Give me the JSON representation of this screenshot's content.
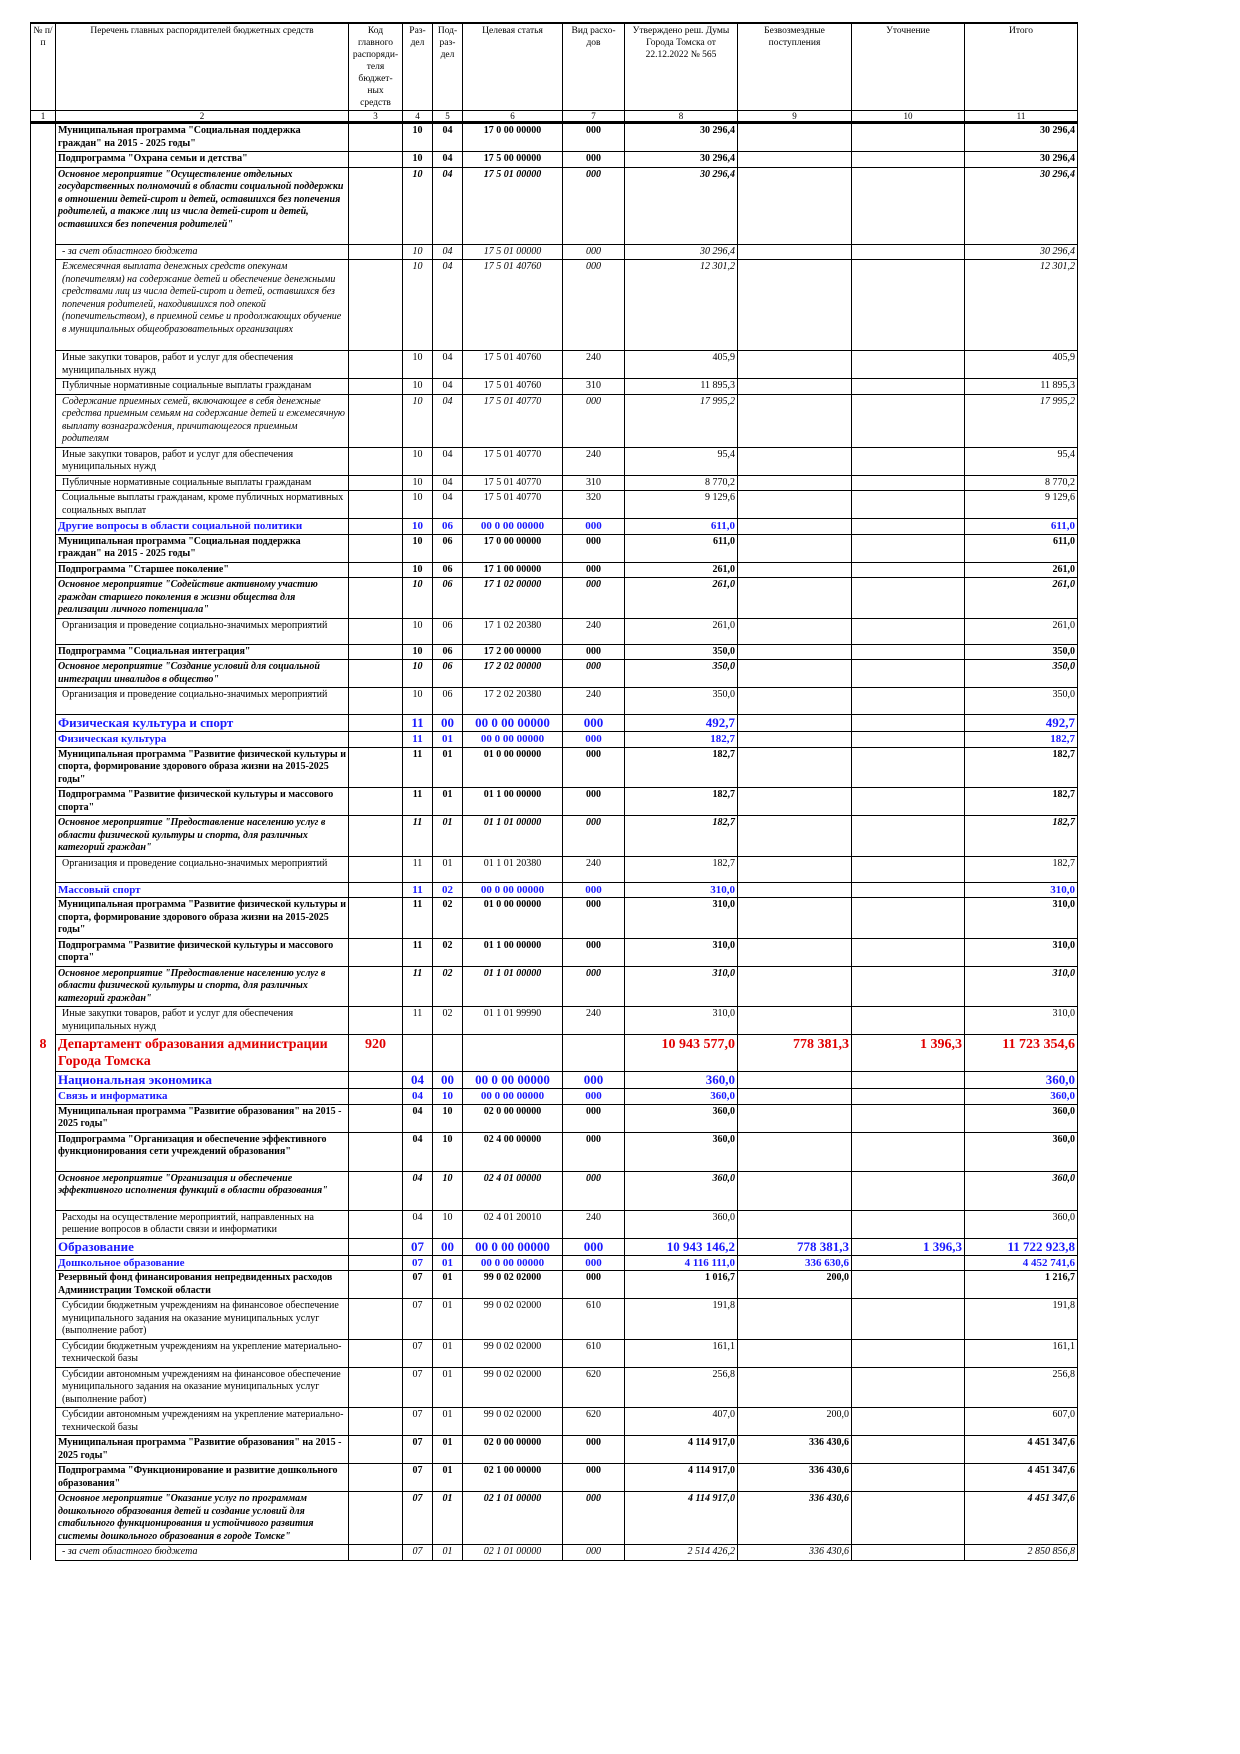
{
  "table": {
    "header": [
      "№ п/п",
      "Перечень главных распорядителей бюджетных средств",
      "Код главного распоряди-теля бюджет-ных средств",
      "Раз-дел",
      "Под-раз-дел",
      "Целевая статья",
      "Вид расхо-дов",
      "Утверждено реш. Думы Города Томска от 22.12.2022 № 565",
      "Безвозмездные поступления",
      "Уточнение",
      "Итого"
    ],
    "column_numbers": [
      1,
      2,
      3,
      4,
      5,
      6,
      7,
      8,
      9,
      10,
      11
    ],
    "rows": [
      [
        null,
        "Муниципальная программа \"Социальная поддержка граждан\" на 2015 - 2025 годы\"",
        null,
        "10",
        "04",
        "17 0 00 00000",
        "000",
        "30 296,4",
        null,
        null,
        "30 296,4"
      ],
      [
        null,
        "Подпрограмма \"Охрана семьи и детства\"",
        null,
        "10",
        "04",
        "17 5 00 00000",
        "000",
        "30 296,4",
        null,
        null,
        "30 296,4"
      ],
      [
        null,
        "Основное мероприятие \"Осуществление отдельных государственных полномочий в области социальной поддержки в отношении детей-сирот и детей, оставшихся без попечения родителей, а также лиц из числа детей-сирот и детей, оставшихся без попечения родителей\"",
        null,
        "10",
        "04",
        "17 5 01 00000",
        "000",
        "30 296,4",
        null,
        null,
        "30 296,4"
      ],
      [
        null,
        "- за счет областного бюджета",
        null,
        "10",
        "04",
        "17 5 01 00000",
        "000",
        "30 296,4",
        null,
        null,
        "30 296,4"
      ],
      [
        null,
        "Ежемесячная выплата денежных средств опекунам (попечителям) на содержание детей и обеспечение денежными средствами лиц из числа детей-сирот и детей, оставшихся без попечения родителей, находившихся под опекой (попечительством), в приемной семье и продолжающих обучение в муниципальных общеобразовательных организациях",
        null,
        "10",
        "04",
        "17 5 01 40760",
        "000",
        "12 301,2",
        null,
        null,
        "12 301,2"
      ],
      [
        null,
        "Иные закупки товаров, работ и услуг для обеспечения муниципальных нужд",
        null,
        "10",
        "04",
        "17 5 01 40760",
        "240",
        "405,9",
        null,
        null,
        "405,9"
      ],
      [
        null,
        "Публичные нормативные социальные выплаты гражданам",
        null,
        "10",
        "04",
        "17 5 01 40760",
        "310",
        "11 895,3",
        null,
        null,
        "11 895,3"
      ],
      [
        null,
        "Содержание приемных семей, включающее в себя денежные средства приемным семьям на содержание детей и ежемесячную выплату вознаграждения, причитающегося приемным родителям",
        null,
        "10",
        "04",
        "17 5 01 40770",
        "000",
        "17 995,2",
        null,
        null,
        "17 995,2"
      ],
      [
        null,
        "Иные закупки товаров, работ и услуг для обеспечения муниципальных нужд",
        null,
        "10",
        "04",
        "17 5 01 40770",
        "240",
        "95,4",
        null,
        null,
        "95,4"
      ],
      [
        null,
        "Публичные нормативные социальные выплаты гражданам",
        null,
        "10",
        "04",
        "17 5 01 40770",
        "310",
        "8 770,2",
        null,
        null,
        "8 770,2"
      ],
      [
        null,
        "Социальные выплаты гражданам, кроме публичных нормативных социальных выплат",
        null,
        "10",
        "04",
        "17 5 01 40770",
        "320",
        "9 129,6",
        null,
        null,
        "9 129,6"
      ],
      [
        null,
        "Другие вопросы в области социальной политики",
        null,
        "10",
        "06",
        "00 0 00 00000",
        "000",
        "611,0",
        null,
        null,
        "611,0"
      ],
      [
        null,
        "Муниципальная программа \"Социальная поддержка граждан\" на 2015 - 2025 годы\"",
        null,
        "10",
        "06",
        "17 0 00 00000",
        "000",
        "611,0",
        null,
        null,
        "611,0"
      ],
      [
        null,
        "Подпрограмма \"Старшее поколение\"",
        null,
        "10",
        "06",
        "17 1 00 00000",
        "000",
        "261,0",
        null,
        null,
        "261,0"
      ],
      [
        null,
        "Основное мероприятие \"Содействие активному участию граждан старшего поколения в жизни общества для реализации личного потенциала\"",
        null,
        "10",
        "06",
        "17 1 02 00000",
        "000",
        "261,0",
        null,
        null,
        "261,0"
      ],
      [
        null,
        "Организация и проведение социально-значимых мероприятий",
        null,
        "10",
        "06",
        "17 1 02 20380",
        "240",
        "261,0",
        null,
        null,
        "261,0"
      ],
      [
        null,
        "Подпрограмма \"Социальная интеграция\"",
        null,
        "10",
        "06",
        "17 2 00 00000",
        "000",
        "350,0",
        null,
        null,
        "350,0"
      ],
      [
        null,
        "Основное мероприятие \"Создание условий для социальной интеграции инвалидов в общество\"",
        null,
        "10",
        "06",
        "17 2 02 00000",
        "000",
        "350,0",
        null,
        null,
        "350,0"
      ],
      [
        null,
        "Организация и проведение социально-значимых мероприятий",
        null,
        "10",
        "06",
        "17 2 02 20380",
        "240",
        "350,0",
        null,
        null,
        "350,0"
      ],
      [
        null,
        "Физическая культура и спорт",
        null,
        "11",
        "00",
        "00 0 00 00000",
        "000",
        "492,7",
        null,
        null,
        "492,7"
      ],
      [
        null,
        "Физическая культура",
        null,
        "11",
        "01",
        "00 0 00 00000",
        "000",
        "182,7",
        null,
        null,
        "182,7"
      ],
      [
        null,
        "Муниципальная программа \"Развитие физической культуры и спорта, формирование здорового образа жизни на 2015-2025 годы\"",
        null,
        "11",
        "01",
        "01 0 00 00000",
        "000",
        "182,7",
        null,
        null,
        "182,7"
      ],
      [
        null,
        "Подпрограмма \"Развитие физической культуры и массового спорта\"",
        null,
        "11",
        "01",
        "01 1 00 00000",
        "000",
        "182,7",
        null,
        null,
        "182,7"
      ],
      [
        null,
        "Основное мероприятие \"Предоставление населению услуг в области физической культуры и спорта, для различных категорий граждан\"",
        null,
        "11",
        "01",
        "01 1 01 00000",
        "000",
        "182,7",
        null,
        null,
        "182,7"
      ],
      [
        null,
        "Организация и проведение социально-значимых мероприятий",
        null,
        "11",
        "01",
        "01 1 01 20380",
        "240",
        "182,7",
        null,
        null,
        "182,7"
      ],
      [
        null,
        "Массовый спорт",
        null,
        "11",
        "02",
        "00 0 00 00000",
        "000",
        "310,0",
        null,
        null,
        "310,0"
      ],
      [
        null,
        "Муниципальная программа \"Развитие физической культуры и спорта, формирование здорового образа жизни на 2015-2025 годы\"",
        null,
        "11",
        "02",
        "01 0 00 00000",
        "000",
        "310,0",
        null,
        null,
        "310,0"
      ],
      [
        null,
        "Подпрограмма \"Развитие физической культуры и массового спорта\"",
        null,
        "11",
        "02",
        "01 1 00 00000",
        "000",
        "310,0",
        null,
        null,
        "310,0"
      ],
      [
        null,
        "Основное мероприятие \"Предоставление населению услуг в области физической культуры и спорта, для различных категорий граждан\"",
        null,
        "11",
        "02",
        "01 1 01 00000",
        "000",
        "310,0",
        null,
        null,
        "310,0"
      ],
      [
        null,
        "Иные закупки товаров, работ и услуг для обеспечения муниципальных нужд",
        null,
        "11",
        "02",
        "01 1 01 99990",
        "240",
        "310,0",
        null,
        null,
        "310,0"
      ],
      [
        "8",
        "Департамент образования администрации Города Томска",
        "920",
        null,
        null,
        null,
        null,
        "10 943 577,0",
        "778 381,3",
        "1 396,3",
        "11 723 354,6"
      ],
      [
        null,
        "Национальная экономика",
        null,
        "04",
        "00",
        "00 0 00 00000",
        "000",
        "360,0",
        null,
        null,
        "360,0"
      ],
      [
        null,
        "Связь и информатика",
        null,
        "04",
        "10",
        "00 0 00 00000",
        "000",
        "360,0",
        null,
        null,
        "360,0"
      ],
      [
        null,
        "Муниципальная программа \"Развитие образования\" на 2015 - 2025 годы\"",
        null,
        "04",
        "10",
        "02 0 00 00000",
        "000",
        "360,0",
        null,
        null,
        "360,0"
      ],
      [
        null,
        "Подпрограмма \"Организация и обеспечение эффективного функционирования сети учреждений образования\"",
        null,
        "04",
        "10",
        "02 4 00 00000",
        "000",
        "360,0",
        null,
        null,
        "360,0"
      ],
      [
        null,
        "Основное мероприятие \"Организация и обеспечение эффективного исполнения функций в области образования\"",
        null,
        "04",
        "10",
        "02 4 01 00000",
        "000",
        "360,0",
        null,
        null,
        "360,0"
      ],
      [
        null,
        "Расходы на осуществление мероприятий, направленных на решение вопросов в области связи и информатики",
        null,
        "04",
        "10",
        "02 4 01 20010",
        "240",
        "360,0",
        null,
        null,
        "360,0"
      ],
      [
        null,
        "Образование",
        null,
        "07",
        "00",
        "00 0 00 00000",
        "000",
        "10 943 146,2",
        "778 381,3",
        "1 396,3",
        "11 722 923,8"
      ],
      [
        null,
        "Дошкольное образование",
        null,
        "07",
        "01",
        "00 0 00 00000",
        "000",
        "4 116 111,0",
        "336 630,6",
        null,
        "4 452 741,6"
      ],
      [
        null,
        "Резервный фонд финансирования непредвиденных расходов Администрации Томской области",
        null,
        "07",
        "01",
        "99 0 02 02000",
        "000",
        "1 016,7",
        "200,0",
        null,
        "1 216,7"
      ],
      [
        null,
        "Субсидии бюджетным учреждениям на финансовое обеспечение муниципального задания на оказание муниципальных услуг (выполнение работ)",
        null,
        "07",
        "01",
        "99 0 02 02000",
        "610",
        "191,8",
        null,
        null,
        "191,8"
      ],
      [
        null,
        "Субсидии бюджетным учреждениям на укрепление материально-технической базы",
        null,
        "07",
        "01",
        "99 0 02 02000",
        "610",
        "161,1",
        null,
        null,
        "161,1"
      ],
      [
        null,
        "Субсидии автономным учреждениям на финансовое обеспечение муниципального задания на оказание муниципальных услуг (выполнение работ)",
        null,
        "07",
        "01",
        "99 0 02 02000",
        "620",
        "256,8",
        null,
        null,
        "256,8"
      ],
      [
        null,
        "Субсидии автономным учреждениям на укрепление материально-технической базы",
        null,
        "07",
        "01",
        "99 0 02 02000",
        "620",
        "407,0",
        "200,0",
        null,
        "607,0"
      ],
      [
        null,
        "Муниципальная программа \"Развитие образования\" на 2015 - 2025 годы\"",
        null,
        "07",
        "01",
        "02 0 00 00000",
        "000",
        "4 114 917,0",
        "336 430,6",
        null,
        "4 451 347,6"
      ],
      [
        null,
        "Подпрограмма \"Функционирование и развитие дошкольного образования\"",
        null,
        "07",
        "01",
        "02 1 00 00000",
        "000",
        "4 114 917,0",
        "336 430,6",
        null,
        "4 451 347,6"
      ],
      [
        null,
        "Основное мероприятие \"Оказание услуг по программам дошкольного образования детей и создание условий для стабильного функционирования и устойчивого развития системы дошкольного образования в городе Томске\"",
        null,
        "07",
        "01",
        "02 1 01 00000",
        "000",
        "4 114 917,0",
        "336 430,6",
        null,
        "4 451 347,6"
      ],
      [
        null,
        "- за счет областного бюджета",
        null,
        "07",
        "01",
        "02 1 01 00000",
        "000",
        "2 514 426,2",
        "336 430,6",
        null,
        "2 850 856,8"
      ]
    ]
  }
}
